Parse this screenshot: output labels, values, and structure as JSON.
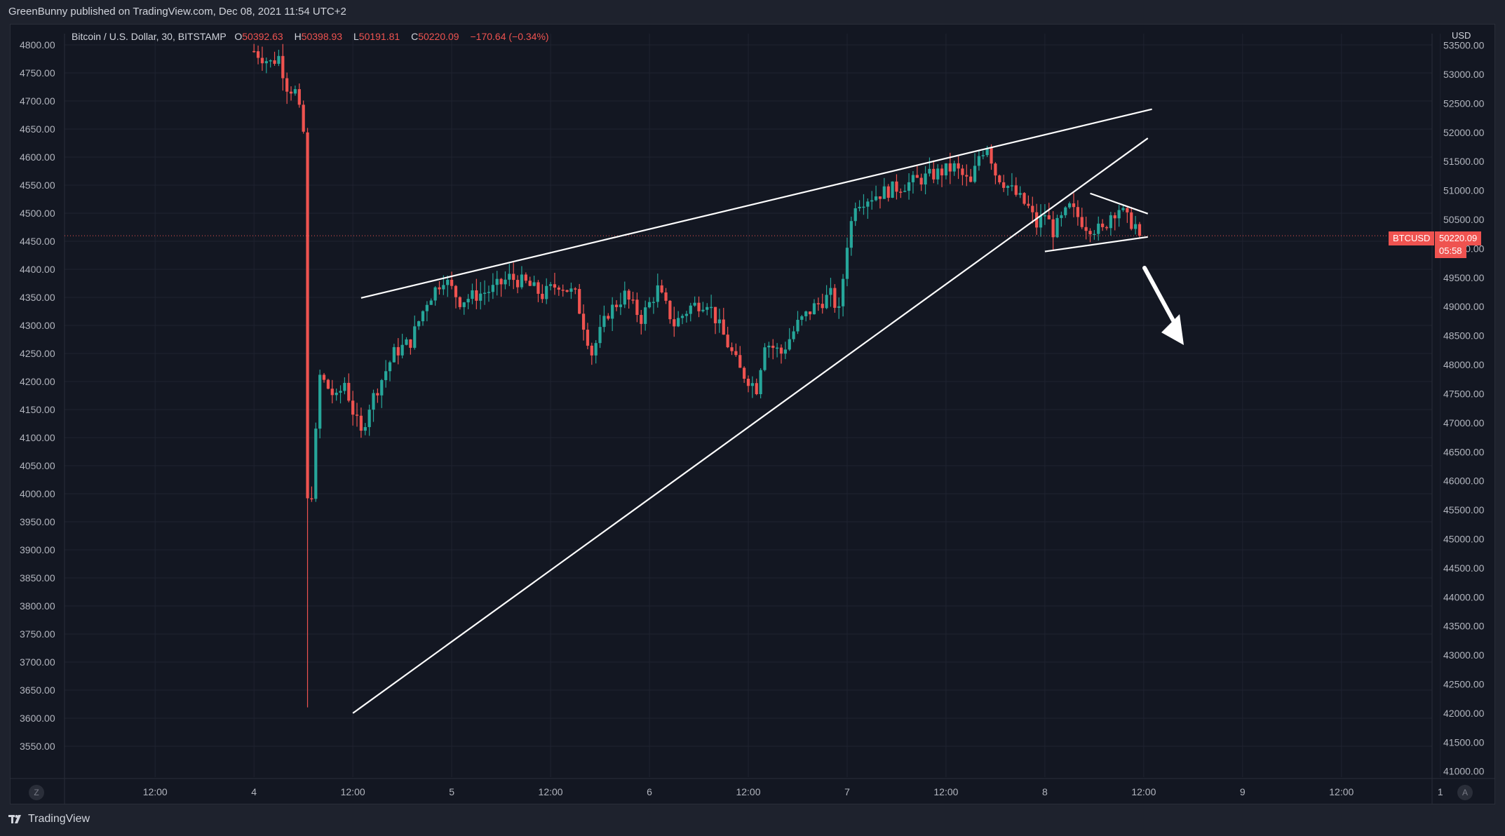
{
  "header": {
    "publish_line": "GreenBunny published on TradingView.com, Dec 08, 2021 11:54 UTC+2"
  },
  "legend": {
    "symbol": "Bitcoin / U.S. Dollar, 30, BITSTAMP",
    "open_label": "O",
    "open": "50392.63",
    "high_label": "H",
    "high": "50398.93",
    "low_label": "L",
    "low": "50191.81",
    "close_label": "C",
    "close": "50220.09",
    "change": "−170.64 (−0.34%)"
  },
  "price_axis": {
    "currency": "USD",
    "ticker_tag": "BTCUSD",
    "last_price": "50220.09",
    "countdown": "05:58"
  },
  "footer": {
    "brand": "TradingView",
    "z_button": "Z",
    "a_button": "A"
  },
  "colors": {
    "up": "#26a69a",
    "down": "#ef5350",
    "background": "#131722",
    "grid": "#1f2330",
    "drawing": "#ffffff"
  },
  "chart_data": {
    "type": "candlestick",
    "title": "Bitcoin / U.S. Dollar, 30, BITSTAMP",
    "left_axis_ticks": [
      "4800.00",
      "4750.00",
      "4700.00",
      "4650.00",
      "4600.00",
      "4550.00",
      "4500.00",
      "4450.00",
      "4400.00",
      "4350.00",
      "4300.00",
      "4250.00",
      "4200.00",
      "4150.00",
      "4100.00",
      "4050.00",
      "4000.00",
      "3950.00",
      "3900.00",
      "3850.00",
      "3800.00",
      "3750.00",
      "3700.00",
      "3650.00",
      "3600.00",
      "3550.00"
    ],
    "right_axis_ticks": [
      "53500.00",
      "53000.00",
      "52500.00",
      "52000.00",
      "51500.00",
      "51000.00",
      "50500.00",
      "50000.00",
      "49500.00",
      "49000.00",
      "48500.00",
      "48000.00",
      "47500.00",
      "47000.00",
      "46500.00",
      "46000.00",
      "45500.00",
      "45000.00",
      "44500.00",
      "44000.00",
      "43500.00",
      "43000.00",
      "42500.00",
      "42000.00",
      "41500.00",
      "41000.00"
    ],
    "right_axis_range": [
      40900,
      53700
    ],
    "x_ticks": [
      "12:00",
      "4",
      "12:00",
      "5",
      "12:00",
      "6",
      "12:00",
      "7",
      "12:00",
      "8",
      "12:00",
      "9",
      "12:00",
      "1"
    ],
    "x_tick_positions": [
      -12,
      0,
      12,
      24,
      36,
      48,
      60,
      72,
      84,
      96,
      108,
      120,
      132,
      144
    ],
    "x_unit": "hours relative to Dec 4 00:00",
    "x_range": [
      -23,
      143
    ],
    "last_price": 50220.09,
    "approximate_closes": [
      {
        "h": 0,
        "p": 53400
      },
      {
        "h": 2,
        "p": 53200
      },
      {
        "h": 3,
        "p": 53300
      },
      {
        "h": 4,
        "p": 52800
      },
      {
        "h": 5,
        "p": 52700
      },
      {
        "h": 6,
        "p": 52000
      },
      {
        "h": 6.5,
        "p": 42100
      },
      {
        "h": 7,
        "p": 45800
      },
      {
        "h": 8,
        "p": 47800
      },
      {
        "h": 9,
        "p": 47600
      },
      {
        "h": 10,
        "p": 47400
      },
      {
        "h": 11,
        "p": 47700
      },
      {
        "h": 12,
        "p": 47200
      },
      {
        "h": 13,
        "p": 46800
      },
      {
        "h": 14,
        "p": 47300
      },
      {
        "h": 15,
        "p": 47600
      },
      {
        "h": 17,
        "p": 48200
      },
      {
        "h": 19,
        "p": 48400
      },
      {
        "h": 21,
        "p": 49100
      },
      {
        "h": 23,
        "p": 49500
      },
      {
        "h": 25,
        "p": 49100
      },
      {
        "h": 27,
        "p": 49200
      },
      {
        "h": 29,
        "p": 49300
      },
      {
        "h": 31,
        "p": 49500
      },
      {
        "h": 33,
        "p": 49400
      },
      {
        "h": 35,
        "p": 49200
      },
      {
        "h": 37,
        "p": 49400
      },
      {
        "h": 39,
        "p": 49200
      },
      {
        "h": 41,
        "p": 48200
      },
      {
        "h": 43,
        "p": 48900
      },
      {
        "h": 45,
        "p": 49200
      },
      {
        "h": 47,
        "p": 48800
      },
      {
        "h": 49,
        "p": 49300
      },
      {
        "h": 51,
        "p": 48700
      },
      {
        "h": 53,
        "p": 49000
      },
      {
        "h": 55,
        "p": 49100
      },
      {
        "h": 57,
        "p": 48500
      },
      {
        "h": 59,
        "p": 47900
      },
      {
        "h": 61,
        "p": 47600
      },
      {
        "h": 62,
        "p": 48400
      },
      {
        "h": 64,
        "p": 48200
      },
      {
        "h": 66,
        "p": 48700
      },
      {
        "h": 68,
        "p": 49000
      },
      {
        "h": 70,
        "p": 49200
      },
      {
        "h": 71,
        "p": 48900
      },
      {
        "h": 72,
        "p": 50100
      },
      {
        "h": 73,
        "p": 50800
      },
      {
        "h": 75,
        "p": 50900
      },
      {
        "h": 77,
        "p": 51000
      },
      {
        "h": 79,
        "p": 51100
      },
      {
        "h": 81,
        "p": 51200
      },
      {
        "h": 83,
        "p": 51300
      },
      {
        "h": 85,
        "p": 51400
      },
      {
        "h": 87,
        "p": 51100
      },
      {
        "h": 88,
        "p": 51600
      },
      {
        "h": 89,
        "p": 51800
      },
      {
        "h": 90,
        "p": 51300
      },
      {
        "h": 92,
        "p": 51000
      },
      {
        "h": 94,
        "p": 50700
      },
      {
        "h": 95,
        "p": 50400
      },
      {
        "h": 96,
        "p": 50600
      },
      {
        "h": 97,
        "p": 50300
      },
      {
        "h": 99,
        "p": 50700
      },
      {
        "h": 101,
        "p": 50400
      },
      {
        "h": 103,
        "p": 50300
      },
      {
        "h": 104,
        "p": 50600
      },
      {
        "h": 105,
        "p": 50700
      },
      {
        "h": 106,
        "p": 50500
      },
      {
        "h": 107,
        "p": 50400
      },
      {
        "h": 107.5,
        "p": 50220
      }
    ],
    "trendlines": [
      {
        "name": "upper-resistance",
        "from": {
          "h": 13,
          "p": 49150
        },
        "to": {
          "h": 109,
          "p": 52400
        }
      },
      {
        "name": "lower-support",
        "from": {
          "h": 12,
          "p": 42000
        },
        "to": {
          "h": 108.5,
          "p": 51900
        }
      },
      {
        "name": "triangle-top",
        "from": {
          "h": 101.5,
          "p": 50950
        },
        "to": {
          "h": 108.5,
          "p": 50600
        }
      },
      {
        "name": "triangle-bottom",
        "from": {
          "h": 96,
          "p": 49950
        },
        "to": {
          "h": 108.5,
          "p": 50200
        }
      }
    ],
    "annotation": "down-arrow below triangle",
    "grid": true
  }
}
